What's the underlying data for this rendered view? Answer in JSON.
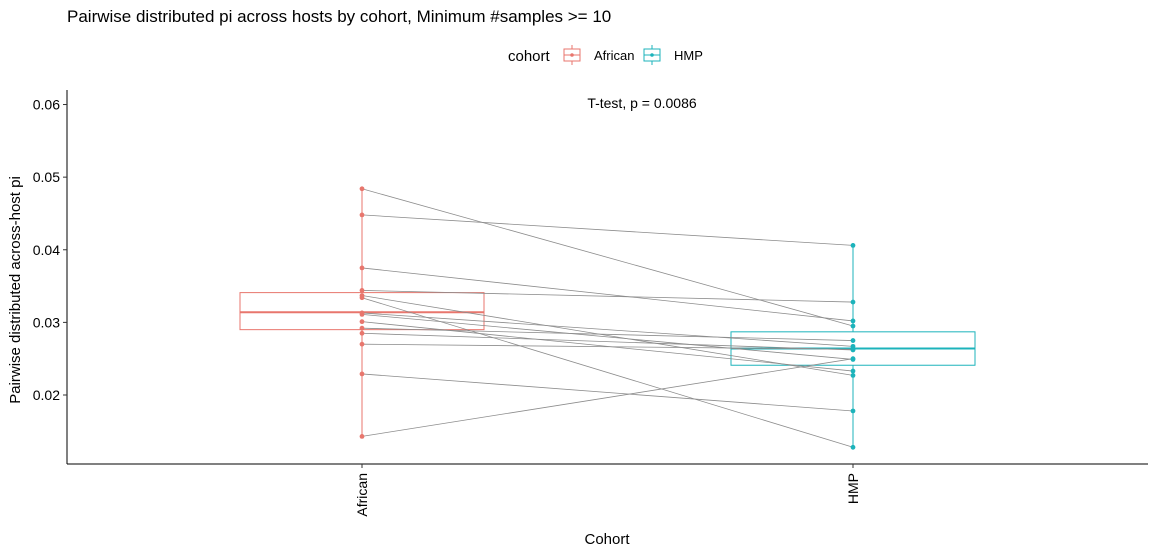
{
  "chart_data": {
    "type": "box",
    "title": "Pairwise distributed pi across hosts by cohort, Minimum #samples >= 10",
    "xlabel": "Cohort",
    "ylabel": "Pairwise distributed across-host pi",
    "categories": [
      "African",
      "HMP"
    ],
    "ylim": [
      0.0105,
      0.062
    ],
    "yticks": [
      0.02,
      0.03,
      0.04,
      0.05,
      0.06
    ],
    "ytick_labels": [
      "0.02",
      "0.03",
      "0.04",
      "0.05",
      "0.06"
    ],
    "grid": false,
    "legend": {
      "title": "cohort",
      "position": "top",
      "entries": [
        {
          "name": "African",
          "color": "#E8766D"
        },
        {
          "name": "HMP",
          "color": "#1CB3BB"
        }
      ]
    },
    "annotation": "T-test, p = 0.0086",
    "boxes": [
      {
        "name": "African",
        "color": "#E8766D",
        "q1": 0.029,
        "median": 0.0314,
        "q3": 0.0341,
        "whisker_low": 0.0143,
        "whisker_high": 0.0484
      },
      {
        "name": "HMP",
        "color": "#1CB3BB",
        "q1": 0.0241,
        "median": 0.0264,
        "q3": 0.0287,
        "whisker_low": 0.0128,
        "whisker_high": 0.0406
      }
    ],
    "pairs": [
      {
        "African": 0.0484,
        "HMP": 0.0295
      },
      {
        "African": 0.0448,
        "HMP": 0.0406
      },
      {
        "African": 0.0375,
        "HMP": 0.0302
      },
      {
        "African": 0.0344,
        "HMP": 0.0328
      },
      {
        "African": 0.0337,
        "HMP": 0.0227
      },
      {
        "African": 0.0334,
        "HMP": 0.0128
      },
      {
        "African": 0.0313,
        "HMP": 0.0267
      },
      {
        "African": 0.0311,
        "HMP": 0.0249
      },
      {
        "African": 0.0301,
        "HMP": 0.0233
      },
      {
        "African": 0.0292,
        "HMP": 0.0275
      },
      {
        "African": 0.0285,
        "HMP": 0.0262
      },
      {
        "African": 0.027,
        "HMP": 0.0263
      },
      {
        "African": 0.0229,
        "HMP": 0.0178
      },
      {
        "African": 0.0143,
        "HMP": 0.025
      }
    ]
  }
}
